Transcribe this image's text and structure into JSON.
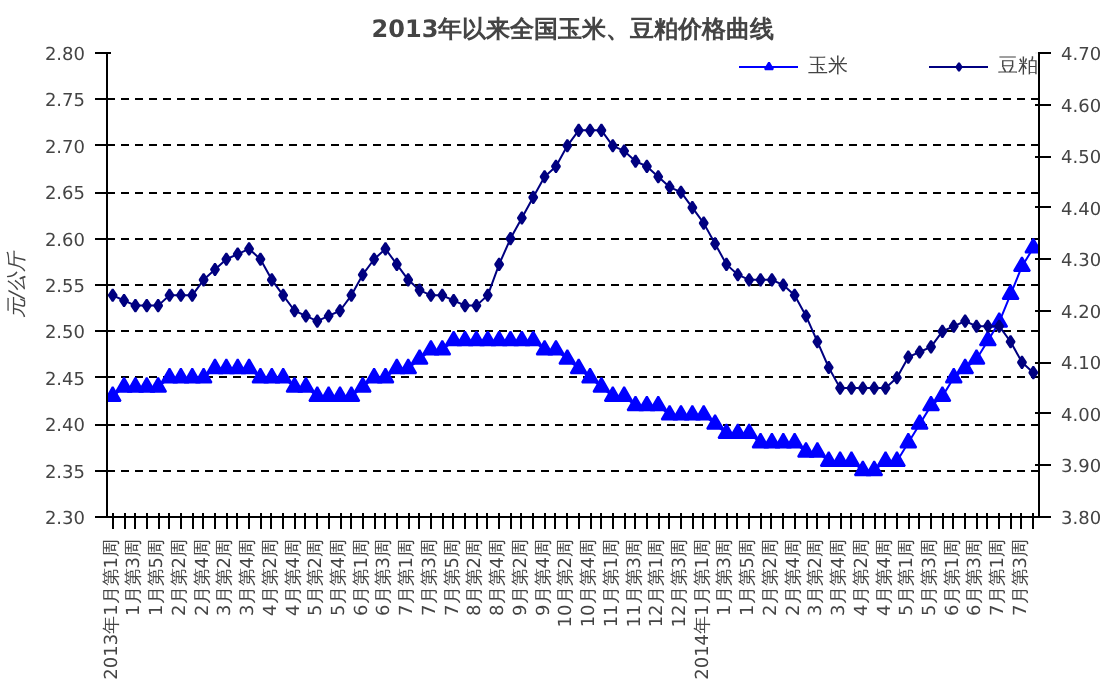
{
  "chart_data": {
    "type": "line",
    "title": "2013年以来全国玉米、豆粕价格曲线",
    "ylabel": "元/公斤",
    "categories": [
      "2013年1月第1周",
      null,
      "1月第3周",
      null,
      "1月第5周",
      null,
      "2月第2周",
      null,
      "2月第4周",
      null,
      "3月第2周",
      null,
      "3月第4周",
      null,
      "4月第2周",
      null,
      "4月第4周",
      null,
      "5月第2周",
      null,
      "5月第4周",
      null,
      "6月第1周",
      null,
      "6月第3周",
      null,
      "7月第1周",
      null,
      "7月第3周",
      null,
      "7月第5周",
      null,
      "8月第2周",
      null,
      "8月第4周",
      null,
      "9月第2周",
      null,
      "9月第4周",
      null,
      "10月第2周",
      null,
      "10月第4周",
      null,
      "11月第1周",
      null,
      "11月第3周",
      null,
      "12月第1周",
      null,
      "12月第3周",
      null,
      "2014年1月第1周",
      null,
      "1月第3周",
      null,
      "1月第5周",
      null,
      "2月第2周",
      null,
      "2月第4周",
      null,
      "3月第2周",
      null,
      "3月第4周",
      null,
      "4月第2周",
      null,
      "4月第4周",
      null,
      "5月第1周",
      null,
      "5月第3周",
      null,
      "6月第1周",
      null,
      "6月第3周",
      null,
      "7月第1周",
      null,
      "7月第3周",
      null
    ],
    "series": [
      {
        "name": "玉米",
        "color": "#0000ff",
        "marker": "triangle",
        "values": [
          2.43,
          2.44,
          2.44,
          2.44,
          2.44,
          2.45,
          2.45,
          2.45,
          2.45,
          2.46,
          2.46,
          2.46,
          2.46,
          2.45,
          2.45,
          2.45,
          2.44,
          2.44,
          2.43,
          2.43,
          2.43,
          2.43,
          2.44,
          2.45,
          2.45,
          2.46,
          2.46,
          2.47,
          2.48,
          2.48,
          2.49,
          2.49,
          2.49,
          2.49,
          2.49,
          2.49,
          2.49,
          2.49,
          2.48,
          2.48,
          2.47,
          2.46,
          2.45,
          2.44,
          2.43,
          2.43,
          2.42,
          2.42,
          2.42,
          2.41,
          2.41,
          2.41,
          2.41,
          2.4,
          2.39,
          2.39,
          2.39,
          2.38,
          2.38,
          2.38,
          2.38,
          2.37,
          2.37,
          2.36,
          2.36,
          2.36,
          2.35,
          2.35,
          2.36,
          2.36,
          2.38,
          2.4,
          2.42,
          2.43,
          2.45,
          2.46,
          2.47,
          2.49,
          2.51,
          2.54,
          2.57,
          2.59
        ]
      },
      {
        "name": "豆粕",
        "color": "#000080",
        "marker": "diamond",
        "axis": "y2",
        "values": [
          4.23,
          4.22,
          4.21,
          4.21,
          4.21,
          4.23,
          4.23,
          4.23,
          4.26,
          4.28,
          4.3,
          4.31,
          4.32,
          4.3,
          4.26,
          4.23,
          4.2,
          4.19,
          4.18,
          4.19,
          4.2,
          4.23,
          4.27,
          4.3,
          4.32,
          4.29,
          4.26,
          4.24,
          4.23,
          4.23,
          4.22,
          4.21,
          4.21,
          4.23,
          4.29,
          4.34,
          4.38,
          4.42,
          4.46,
          4.48,
          4.52,
          4.55,
          4.55,
          4.55,
          4.52,
          4.51,
          4.49,
          4.48,
          4.46,
          4.44,
          4.43,
          4.4,
          4.37,
          4.33,
          4.29,
          4.27,
          4.26,
          4.26,
          4.26,
          4.25,
          4.23,
          4.19,
          4.14,
          4.09,
          4.05,
          4.05,
          4.05,
          4.05,
          4.05,
          4.07,
          4.11,
          4.12,
          4.13,
          4.16,
          4.17,
          4.18,
          4.17,
          4.17,
          4.17,
          4.14,
          4.1,
          4.08
        ]
      }
    ],
    "ylim": [
      2.3,
      2.8
    ],
    "yticks": [
      {
        "value": 2.3,
        "label": "2.30"
      },
      2.35,
      {
        "value": 2.4,
        "label": "2.40"
      },
      2.45,
      {
        "value": 2.5,
        "label": "2.50"
      },
      2.55,
      {
        "value": 2.6,
        "label": "2.60"
      },
      2.65,
      {
        "value": 2.7,
        "label": "2.70"
      },
      2.75,
      {
        "value": 2.8,
        "label": "2.80"
      }
    ],
    "y2lim": [
      3.8,
      4.7
    ],
    "y2ticks": [
      {
        "value": 3.8,
        "label": "3.80"
      },
      {
        "value": 3.9,
        "label": "3.90"
      },
      {
        "value": 4.0,
        "label": "4.00"
      },
      {
        "value": 4.1,
        "label": "4.10"
      },
      {
        "value": 4.2,
        "label": "4.20"
      },
      {
        "value": 4.3,
        "label": "4.30"
      },
      {
        "value": 4.4,
        "label": "4.40"
      },
      {
        "value": 4.5,
        "label": "4.50"
      },
      {
        "value": 4.6,
        "label": "4.60"
      },
      {
        "value": 4.7,
        "label": "4.70"
      }
    ],
    "grid": "y",
    "legend": "top right",
    "line_style": "solid"
  }
}
